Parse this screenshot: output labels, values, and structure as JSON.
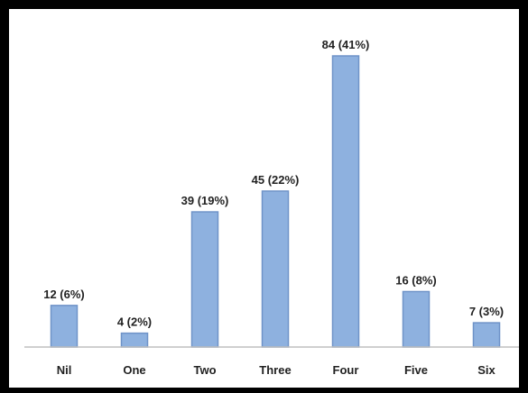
{
  "chart_data": {
    "type": "bar",
    "categories": [
      "Nil",
      "One",
      "Two",
      "Three",
      "Four",
      "Five",
      "Six"
    ],
    "values": [
      12,
      4,
      39,
      45,
      84,
      16,
      7
    ],
    "percentages": [
      "6%",
      "2%",
      "19%",
      "22%",
      "41%",
      "8%",
      "3%"
    ],
    "data_labels": [
      "12 (6%)",
      "4 (2%)",
      "39 (19%)",
      "45 (22%)",
      "84 (41%)",
      "16 (8%)",
      "7 (3%)"
    ],
    "title": "",
    "xlabel": "",
    "ylabel": "",
    "ylim": [
      0,
      84
    ],
    "grid": false,
    "legend": "none",
    "colors": {
      "bar_fill": "#8eb1df",
      "bar_stroke": "#6f93c8",
      "frame": "#000000",
      "background": "#ffffff",
      "axis": "#bfbfbf"
    }
  }
}
